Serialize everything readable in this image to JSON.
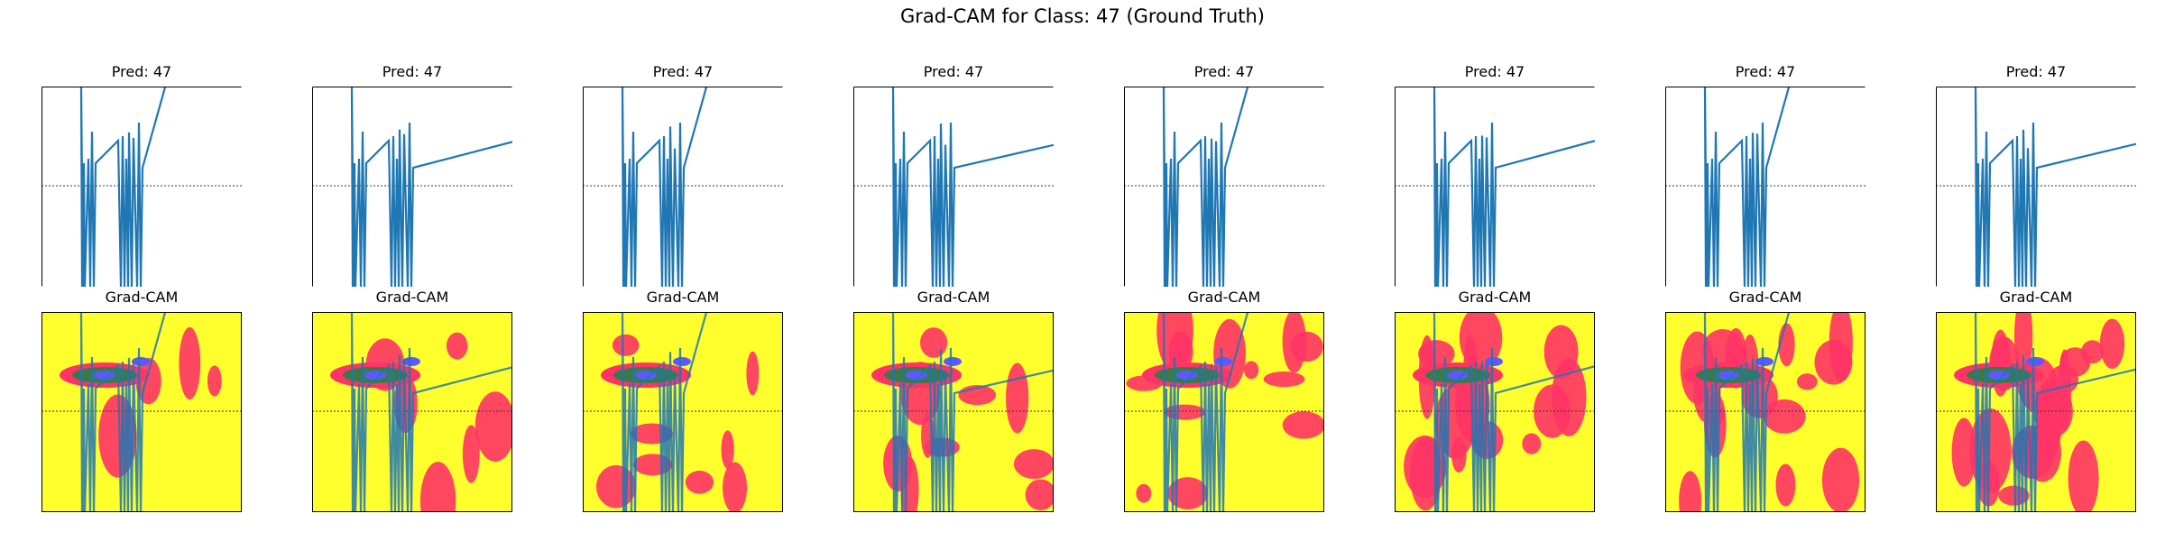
{
  "figure": {
    "title": "Grad-CAM for Class: 47 (Ground Truth)"
  },
  "colors": {
    "signal": "#1f77b4",
    "baseline": "#333333",
    "cam_background": "#ffff2e",
    "cam_red": "#ff3366",
    "cam_green": "#3a7a4a",
    "cam_blue": "#5a5aff"
  },
  "chart_data": [
    {
      "type": "line",
      "panel": "signal",
      "title": "Pred: 47",
      "grid": false,
      "series_style": "spikes"
    },
    {
      "type": "heatmap",
      "panel": "grad-cam",
      "title": "Grad-CAM",
      "colormap": "yellow-red-green-blue"
    },
    {
      "type": "line",
      "panel": "signal",
      "title": "Pred: 47",
      "grid": false
    },
    {
      "type": "heatmap",
      "panel": "grad-cam",
      "title": "Grad-CAM"
    },
    {
      "type": "line",
      "panel": "signal",
      "title": "Pred: 47",
      "grid": false
    },
    {
      "type": "heatmap",
      "panel": "grad-cam",
      "title": "Grad-CAM"
    },
    {
      "type": "line",
      "panel": "signal",
      "title": "Pred: 47",
      "grid": false
    },
    {
      "type": "heatmap",
      "panel": "grad-cam",
      "title": "Grad-CAM"
    },
    {
      "type": "line",
      "panel": "signal",
      "title": "Pred: 47",
      "grid": false
    },
    {
      "type": "heatmap",
      "panel": "grad-cam",
      "title": "Grad-CAM"
    },
    {
      "type": "line",
      "panel": "signal",
      "title": "Pred: 47",
      "grid": false
    },
    {
      "type": "heatmap",
      "panel": "grad-cam",
      "title": "Grad-CAM"
    },
    {
      "type": "line",
      "panel": "signal",
      "title": "Pred: 47",
      "grid": false
    },
    {
      "type": "heatmap",
      "panel": "grad-cam",
      "title": "Grad-CAM"
    },
    {
      "type": "line",
      "panel": "signal",
      "title": "Pred: 47",
      "grid": false
    },
    {
      "type": "heatmap",
      "panel": "grad-cam",
      "title": "Grad-CAM"
    }
  ]
}
